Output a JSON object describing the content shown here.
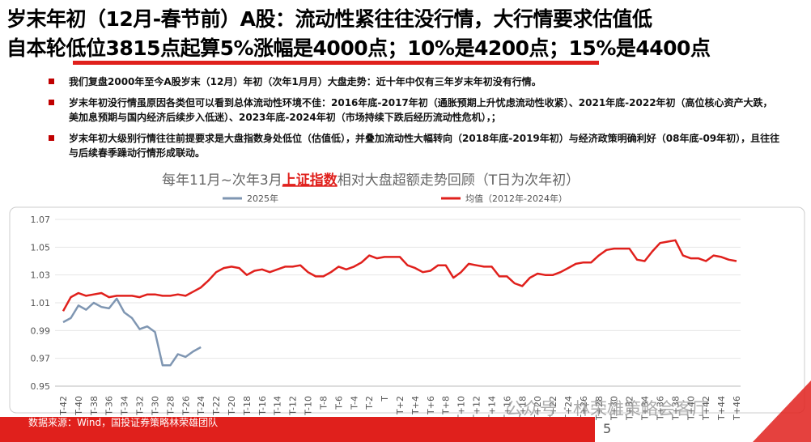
{
  "header": {
    "line1": "岁末年初（12月-春节前）A股：流动性紧往往没行情，大行情要求估值低",
    "line2": "自本轮低位3815点起算5%涨幅是4000点；10%是4200点；15%是4400点"
  },
  "bullets": [
    "我们复盘2000年至今A股岁末（12月）年初（次年1月月）大盘走势：近十年中仅有三年岁末年初没有行情。",
    "岁末年初没行情虽原因各类但可以看到总体流动性环境不佳：2016年底-2017年初（通胀预期上升忧虑流动性收紧）、2021年底-2022年初（高位核心资产大跌，美加息预期与国内经济后续步入低迷）、2023年底-2024年初（市场持续下跌后经历流动性危机），；",
    "岁末年初大级别行情往往前提要求是大盘指数身处低位（估值低），并叠加流动性大幅转向（2018年底-2019年初）与经济政策明确利好（08年底-09年初），且往往与后续春季躁动行情形成联动。"
  ],
  "chart_data": {
    "type": "line",
    "title_parts": [
      "每年11月~次年3月",
      "上证指数",
      "相对大盘超额走势回顾（T日为次年初）"
    ],
    "categories": [
      "T-42",
      null,
      "T-40",
      null,
      "T-38",
      null,
      "T-36",
      null,
      "T-34",
      null,
      "T-32",
      null,
      "T-30",
      null,
      "T-28",
      null,
      "T-26",
      null,
      "T-24",
      null,
      "T-22",
      null,
      "T-20",
      null,
      "T-18",
      null,
      "T-16",
      null,
      "T-14",
      null,
      "T-12",
      null,
      "T-10",
      null,
      "T-8",
      null,
      "T-6",
      null,
      "T-4",
      null,
      "T-2",
      null,
      "T",
      null,
      "T+2",
      null,
      "T+4",
      null,
      "T+6",
      null,
      "T+8",
      null,
      "T+10",
      null,
      "T+12",
      null,
      "T+14",
      null,
      "T+16",
      null,
      "T+18",
      null,
      "T+20",
      null,
      "T+22",
      null,
      "T+24",
      null,
      "T+26",
      null,
      "T+28",
      null,
      "T+30",
      null,
      "T+32",
      null,
      "T+34",
      null,
      "T+36",
      null,
      "T+38",
      null,
      "T+40",
      null,
      "T+42",
      null,
      "T+44",
      null,
      "T+46"
    ],
    "series": [
      {
        "name": "2025年",
        "color": "#7f96b2",
        "values": [
          0.996,
          0.999,
          1.008,
          1.005,
          1.01,
          1.007,
          1.006,
          1.013,
          1.003,
          0.999,
          0.991,
          0.993,
          0.989,
          0.965,
          0.965,
          0.973,
          0.971,
          0.975,
          0.978,
          null,
          null,
          null,
          null,
          null,
          null,
          null,
          null,
          null,
          null,
          null,
          null,
          null,
          null,
          null,
          null,
          null,
          null,
          null,
          null,
          null,
          null,
          null,
          null,
          null,
          null,
          null,
          null,
          null,
          null,
          null,
          null,
          null,
          null,
          null,
          null,
          null,
          null,
          null,
          null,
          null,
          null,
          null,
          null,
          null,
          null,
          null,
          null,
          null,
          null,
          null,
          null,
          null,
          null,
          null,
          null,
          null,
          null,
          null,
          null,
          null,
          null,
          null,
          null,
          null,
          null,
          null,
          null,
          null,
          null
        ]
      },
      {
        "name": "均值（2012年-2024年）",
        "color": "#e0201c",
        "values": [
          1.004,
          1.014,
          1.017,
          1.015,
          1.016,
          1.017,
          1.014,
          1.015,
          1.015,
          1.015,
          1.014,
          1.016,
          1.016,
          1.015,
          1.015,
          1.016,
          1.015,
          1.018,
          1.021,
          1.026,
          1.032,
          1.035,
          1.036,
          1.035,
          1.03,
          1.033,
          1.034,
          1.032,
          1.034,
          1.036,
          1.036,
          1.037,
          1.032,
          1.029,
          1.029,
          1.032,
          1.036,
          1.034,
          1.036,
          1.039,
          1.044,
          1.042,
          1.043,
          1.043,
          1.043,
          1.037,
          1.035,
          1.032,
          1.033,
          1.037,
          1.037,
          1.028,
          1.032,
          1.038,
          1.037,
          1.036,
          1.036,
          1.029,
          1.029,
          1.024,
          1.022,
          1.028,
          1.031,
          1.03,
          1.03,
          1.032,
          1.035,
          1.038,
          1.039,
          1.039,
          1.044,
          1.048,
          1.049,
          1.049,
          1.049,
          1.041,
          1.04,
          1.047,
          1.053,
          1.054,
          1.055,
          1.044,
          1.042,
          1.042,
          1.04,
          1.044,
          1.043,
          1.041,
          1.04
        ]
      }
    ],
    "ylim": [
      0.95,
      1.07
    ],
    "yticks": [
      0.95,
      0.97,
      0.99,
      1.01,
      1.03,
      1.05,
      1.07
    ],
    "grid": true
  },
  "footer": {
    "source": "数据来源：Wind，国投证券策略林荣雄团队",
    "page": "5",
    "watermark": "公众号 · 林荣雄策略会客厅"
  }
}
